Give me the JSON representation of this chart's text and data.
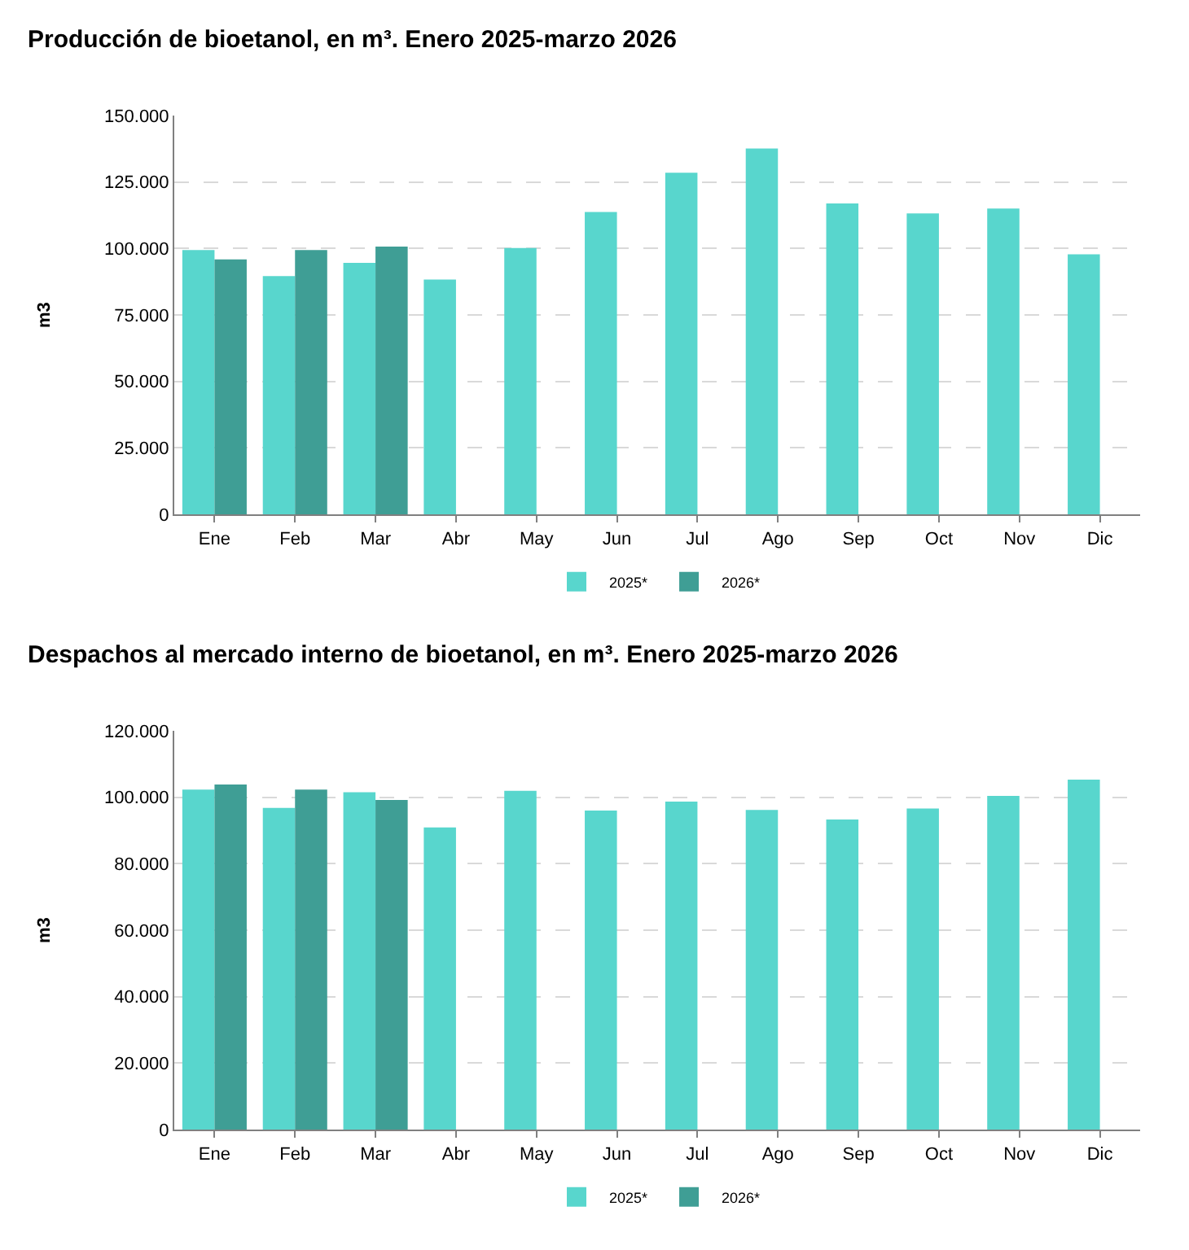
{
  "chart_data": [
    {
      "type": "bar",
      "title": "Producción de bioetanol, en m³. Enero 2025-marzo 2026",
      "ylabel": "m3",
      "categories": [
        "Ene",
        "Feb",
        "Mar",
        "Abr",
        "May",
        "Jun",
        "Jul",
        "Ago",
        "Sep",
        "Oct",
        "Nov",
        "Dic"
      ],
      "series": [
        {
          "name": "2025*",
          "color": "#58d6cd",
          "values": [
            99400,
            89600,
            94600,
            88300,
            100200,
            113700,
            128500,
            137600,
            116900,
            113200,
            115000,
            97800
          ]
        },
        {
          "name": "2026*",
          "color": "#3f9e95",
          "values": [
            95900,
            99400,
            100700,
            null,
            null,
            null,
            null,
            null,
            null,
            null,
            null,
            null
          ]
        }
      ],
      "ylim": [
        0,
        150000
      ],
      "yticks": [
        {
          "value": 0,
          "label": "0"
        },
        {
          "value": 25000,
          "label": "25.000"
        },
        {
          "value": 50000,
          "label": "50.000"
        },
        {
          "value": 75000,
          "label": "75.000"
        },
        {
          "value": 100000,
          "label": "100.000"
        },
        {
          "value": 125000,
          "label": "125.000"
        },
        {
          "value": 150000,
          "label": "150.000"
        }
      ],
      "grid": "y",
      "legend": "bottom"
    },
    {
      "type": "bar",
      "title": "Despachos al mercado interno de bioetanol, en m³. Enero 2025-marzo 2026",
      "ylabel": "m3",
      "categories": [
        "Ene",
        "Feb",
        "Mar",
        "Abr",
        "May",
        "Jun",
        "Jul",
        "Ago",
        "Sep",
        "Oct",
        "Nov",
        "Dic"
      ],
      "series": [
        {
          "name": "2025*",
          "color": "#58d6cd",
          "values": [
            102300,
            96800,
            101500,
            90900,
            101900,
            96000,
            98700,
            96200,
            93300,
            96600,
            100400,
            105300
          ]
        },
        {
          "name": "2026*",
          "color": "#3f9e95",
          "values": [
            103800,
            102300,
            99200,
            null,
            null,
            null,
            null,
            null,
            null,
            null,
            null,
            null
          ]
        }
      ],
      "ylim": [
        0,
        120000
      ],
      "yticks": [
        {
          "value": 0,
          "label": "0"
        },
        {
          "value": 20000,
          "label": "20.000"
        },
        {
          "value": 40000,
          "label": "40.000"
        },
        {
          "value": 60000,
          "label": "60.000"
        },
        {
          "value": 80000,
          "label": "80.000"
        },
        {
          "value": 100000,
          "label": "100.000"
        },
        {
          "value": 120000,
          "label": "120.000"
        }
      ],
      "grid": "y",
      "legend": "bottom"
    }
  ]
}
